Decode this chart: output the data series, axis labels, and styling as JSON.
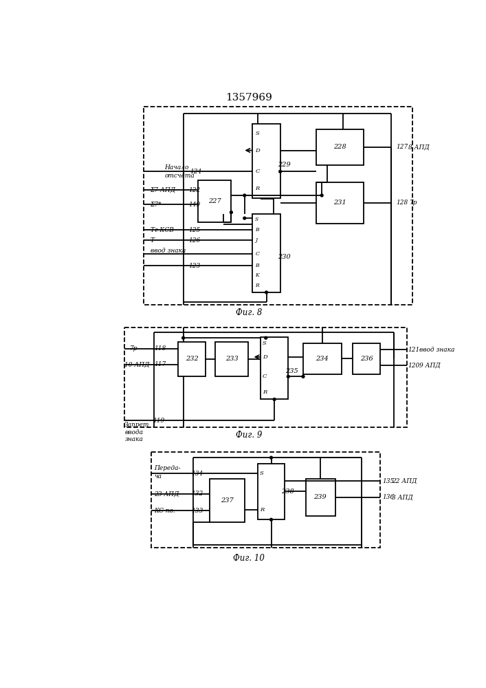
{
  "title": "1357969",
  "fig8_label": "Фиг. 8",
  "fig9_label": "Фиг. 9",
  "fig10_label": "Фиг. 10"
}
